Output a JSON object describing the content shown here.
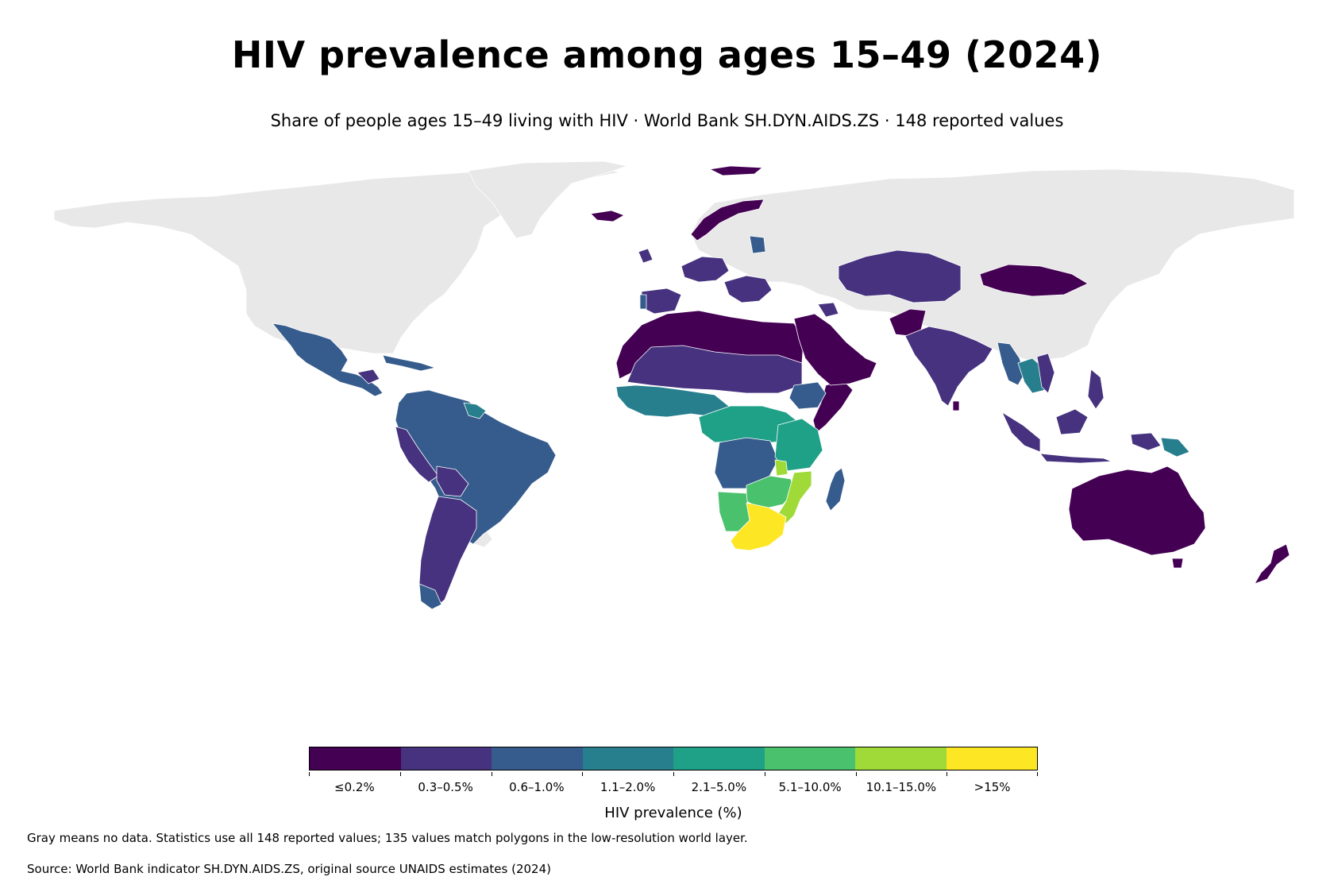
{
  "title": "HIV prevalence among ages 15–49 (2024)",
  "subtitle": "Share of people ages 15–49 living with HIV · World Bank SH.DYN.AIDS.ZS · 148 reported values",
  "legend": {
    "title": "HIV prevalence (%)",
    "bins": [
      {
        "label": "≤0.2%",
        "color": "#440154"
      },
      {
        "label": "0.3–0.5%",
        "color": "#46327e"
      },
      {
        "label": "0.6–1.0%",
        "color": "#365c8d"
      },
      {
        "label": "1.1–2.0%",
        "color": "#277f8e"
      },
      {
        "label": "2.1–5.0%",
        "color": "#1fa187"
      },
      {
        "label": "5.1–10.0%",
        "color": "#4ac16d"
      },
      {
        "label": "10.1–15.0%",
        "color": "#a0da39"
      },
      {
        "label": ">15%",
        "color": "#fde725"
      }
    ],
    "no_data_color": "#e8e8e8"
  },
  "note": "Gray means no data. Statistics use all 148 reported values; 135 values match polygons in the low-resolution world layer.",
  "source": "Source: World Bank indicator SH.DYN.AIDS.ZS, original source UNAIDS estimates (2024)",
  "regions": [
    {
      "name": "North America / Greenland / Russia / China",
      "bin": "no data"
    },
    {
      "name": "Mexico & Central America",
      "bin": "0.6–1.0%"
    },
    {
      "name": "South America",
      "bin": "0.6–1.0%"
    },
    {
      "name": "Guyana & Suriname",
      "bin": "1.1–2.0%"
    },
    {
      "name": "Peru / Bolivia / Argentina / Chile",
      "bin": "0.3–0.5%"
    },
    {
      "name": "North Africa",
      "bin": "≤0.2%"
    },
    {
      "name": "Arabian Peninsula",
      "bin": "≤0.2%"
    },
    {
      "name": "West Africa",
      "bin": "1.1–2.0%"
    },
    {
      "name": "Sahel",
      "bin": "0.3–0.5%"
    },
    {
      "name": "Central Africa",
      "bin": "2.1–5.0%"
    },
    {
      "name": "DR Congo / Angola",
      "bin": "0.6–1.0%"
    },
    {
      "name": "Tanzania / Kenya",
      "bin": "2.1–5.0%"
    },
    {
      "name": "Zambia / Zimbabwe / Malawi",
      "bin": "5.1–10.0%"
    },
    {
      "name": "Mozambique",
      "bin": "10.1–15.0%"
    },
    {
      "name": "South Africa / Botswana / Lesotho",
      "bin": ">15%"
    },
    {
      "name": "Namibia",
      "bin": "5.1–10.0%"
    },
    {
      "name": "Madagascar",
      "bin": "0.6–1.0%"
    },
    {
      "name": "Kazakhstan / Central Asia",
      "bin": "0.3–0.5%"
    },
    {
      "name": "Mongolia",
      "bin": "≤0.2%"
    },
    {
      "name": "India / Afghanistan / Pakistan",
      "bin": "0.3–0.5%"
    },
    {
      "name": "Myanmar / Thailand",
      "bin": "0.6–1.0%"
    },
    {
      "name": "Indonesia / Malaysia / Philippines",
      "bin": "0.3–0.5%"
    },
    {
      "name": "Papua New Guinea",
      "bin": "1.1–2.0%"
    },
    {
      "name": "Australia / New Zealand",
      "bin": "≤0.2%"
    },
    {
      "name": "Europe (selected)",
      "bin": "0.3–0.5%"
    },
    {
      "name": "Iceland / Norway",
      "bin": "≤0.2%"
    }
  ]
}
